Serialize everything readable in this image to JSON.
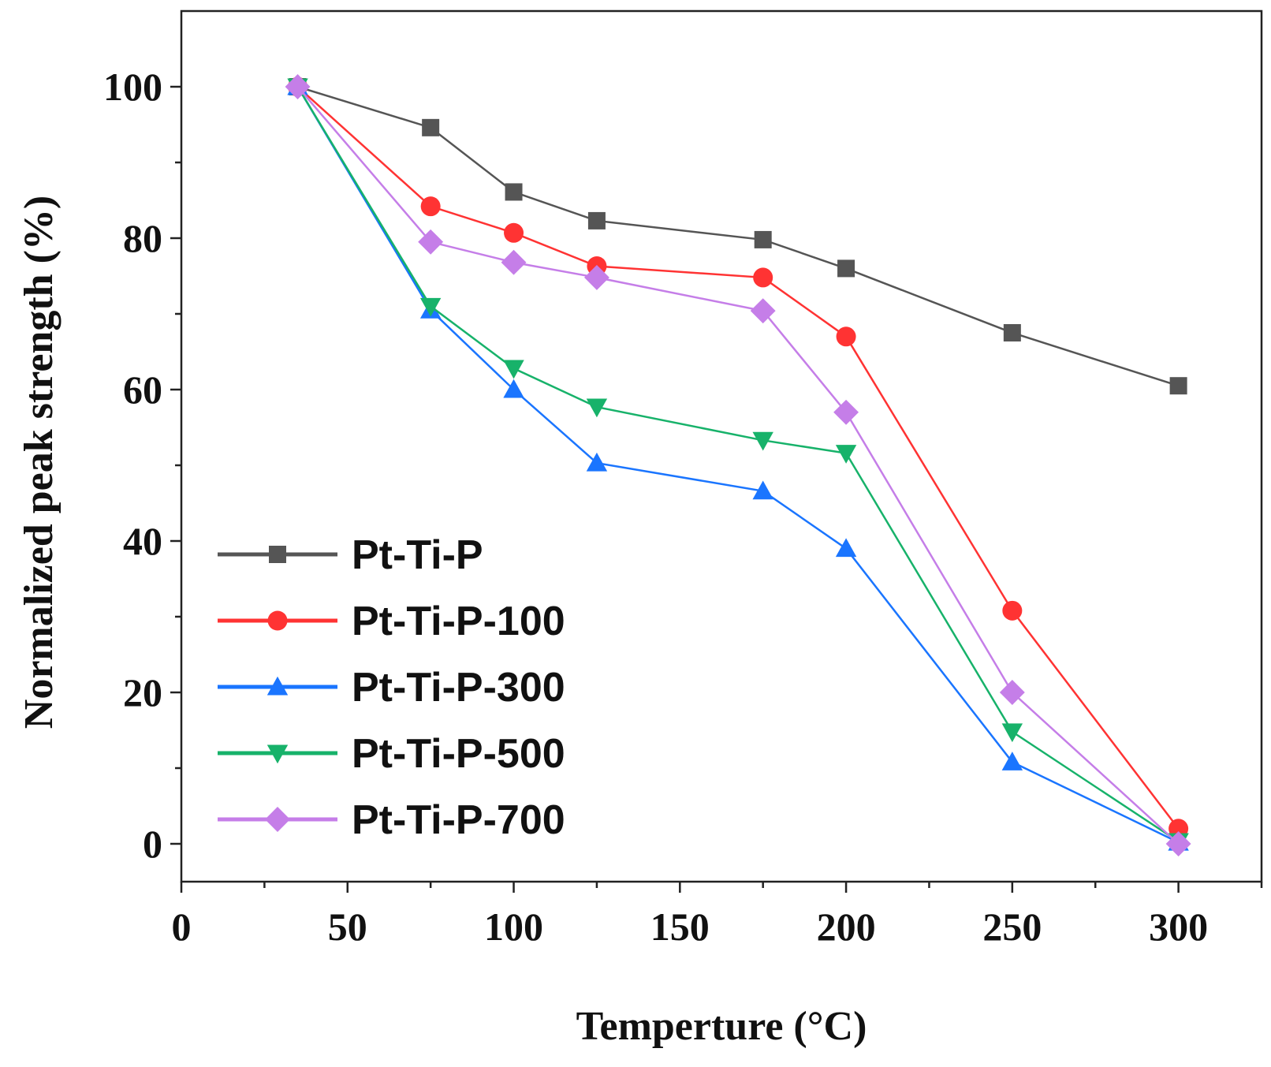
{
  "chart_data": {
    "type": "line",
    "title": "",
    "xlabel": "Temperture (°C)",
    "ylabel": "Normalized peak strength (%)",
    "xlim": [
      0,
      325
    ],
    "ylim": [
      -5,
      110
    ],
    "xticks": [
      0,
      50,
      100,
      150,
      200,
      250,
      300
    ],
    "yticks": [
      0,
      20,
      40,
      60,
      80,
      100
    ],
    "legend_position": "bottom-left",
    "x": [
      35,
      75,
      100,
      125,
      175,
      200,
      250,
      300
    ],
    "series": [
      {
        "name": "Pt-Ti-P",
        "color": "#555555",
        "marker": "square",
        "values": [
          100,
          94.6,
          86.1,
          82.3,
          79.8,
          76.0,
          67.5,
          60.5
        ]
      },
      {
        "name": "Pt-Ti-P-100",
        "color": "#ff3333",
        "marker": "circle",
        "values": [
          100,
          84.2,
          80.7,
          76.3,
          74.8,
          67.0,
          30.8,
          2.0
        ]
      },
      {
        "name": "Pt-Ti-P-300",
        "color": "#1a75ff",
        "marker": "triangle-up",
        "values": [
          100,
          70.5,
          60.0,
          50.3,
          46.6,
          39.0,
          10.8,
          0.2
        ]
      },
      {
        "name": "Pt-Ti-P-500",
        "color": "#17b26a",
        "marker": "triangle-down",
        "values": [
          100,
          71.0,
          62.8,
          57.7,
          53.3,
          51.6,
          14.8,
          0.3
        ]
      },
      {
        "name": "Pt-Ti-P-700",
        "color": "#c57ee8",
        "marker": "diamond",
        "values": [
          100,
          79.5,
          76.8,
          74.8,
          70.4,
          57.0,
          20.0,
          0.0
        ]
      }
    ]
  }
}
